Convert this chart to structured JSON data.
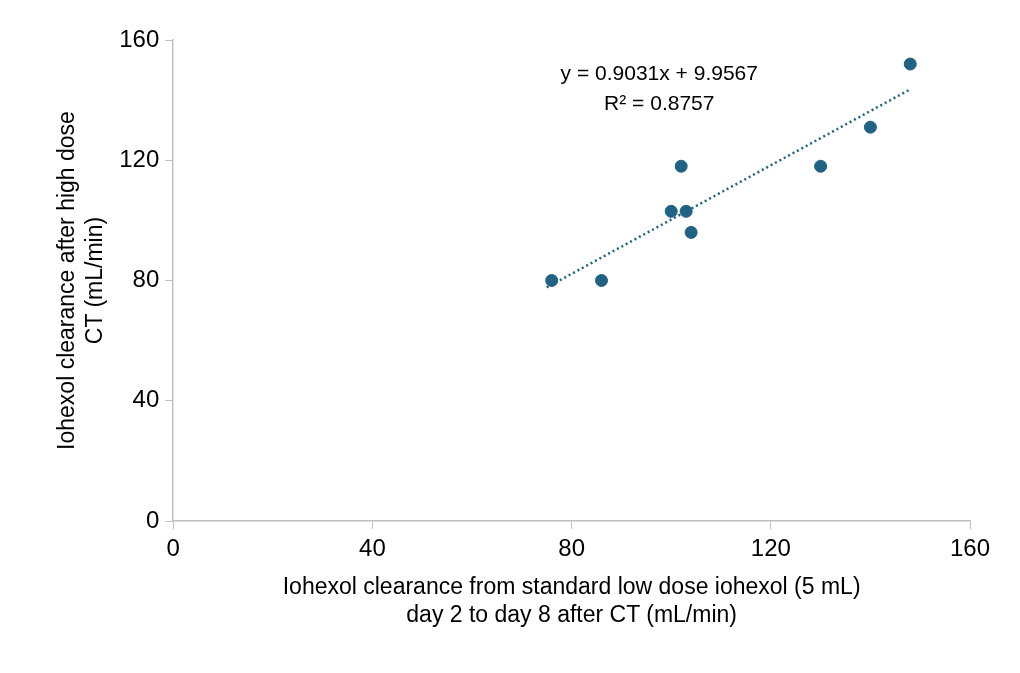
{
  "chart_data": {
    "type": "scatter",
    "xlabel": "Iohexol clearance from standard low dose iohexol (5 mL)\nday 2 to day 8 after CT (mL/min)",
    "ylabel": "Iohexol clearance after high dose\nCT (mL/min)",
    "xlim": [
      0,
      160
    ],
    "ylim": [
      0,
      160
    ],
    "xticks": [
      0,
      40,
      80,
      120,
      160
    ],
    "yticks": [
      0,
      40,
      80,
      120,
      160
    ],
    "grid": false,
    "legend": false,
    "marker": "circle",
    "annotations": [
      "y = 0.9031x + 9.9567",
      "R² = 0.8757"
    ],
    "series": [
      {
        "type": "scatter",
        "color": "#1f6283",
        "x": [
          76,
          86,
          100,
          102,
          103,
          104,
          130,
          140,
          148
        ],
        "values": [
          80,
          80,
          103,
          118,
          103,
          96,
          118,
          131,
          152
        ]
      },
      {
        "type": "line",
        "color": "#1f6283",
        "line_style": "dotted",
        "marker": "none",
        "x": [
          75,
          148
        ],
        "values": [
          77.7,
          143.6
        ]
      }
    ]
  }
}
